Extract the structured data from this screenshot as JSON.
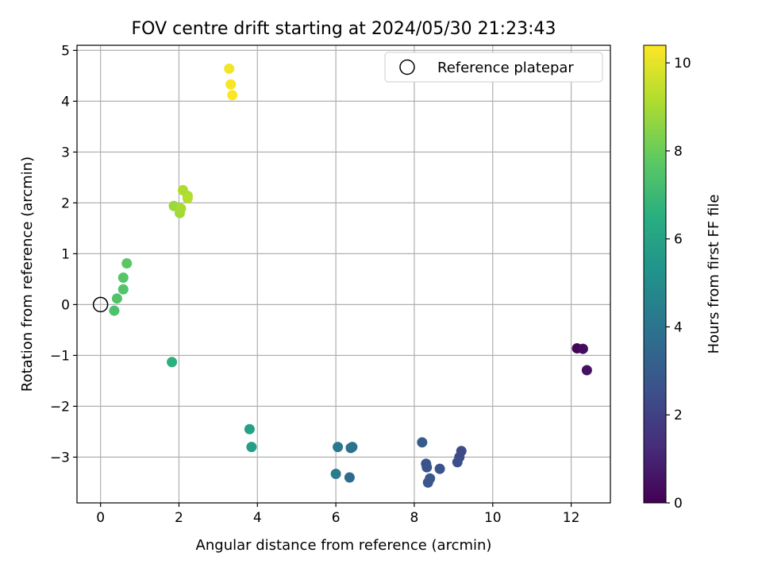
{
  "chart_data": {
    "type": "scatter",
    "title": "FOV centre drift starting at 2024/05/30 21:23:43",
    "xlabel": "Angular distance from reference (arcmin)",
    "ylabel": "Rotation from reference (arcmin)",
    "xlim": [
      -0.6,
      13.0
    ],
    "ylim": [
      -3.9,
      5.1
    ],
    "xticks": [
      0,
      2,
      4,
      6,
      8,
      10,
      12
    ],
    "yticks": [
      -3,
      -2,
      -1,
      0,
      1,
      2,
      3,
      4,
      5
    ],
    "grid": true,
    "legend": {
      "placement": "top-right",
      "entries": [
        "Reference platepar"
      ]
    },
    "reference_point": {
      "x": 0,
      "y": 0,
      "label": "Reference platepar"
    },
    "colorbar": {
      "label": "Hours from first FF file",
      "range": [
        0,
        10.4
      ],
      "ticks": [
        0,
        2,
        4,
        6,
        8,
        10
      ],
      "colormap": "viridis"
    },
    "series": [
      {
        "points": [
          {
            "x": 12.15,
            "y": -0.86,
            "c": 0.1
          },
          {
            "x": 12.3,
            "y": -0.87,
            "c": 0.3
          },
          {
            "x": 12.4,
            "y": -1.29,
            "c": 0.5
          },
          {
            "x": 9.2,
            "y": -2.88,
            "c": 2.4
          },
          {
            "x": 9.15,
            "y": -3.0,
            "c": 2.4
          },
          {
            "x": 9.1,
            "y": -3.1,
            "c": 2.5
          },
          {
            "x": 8.65,
            "y": -3.23,
            "c": 2.6
          },
          {
            "x": 8.3,
            "y": -3.13,
            "c": 2.7
          },
          {
            "x": 8.32,
            "y": -3.2,
            "c": 2.7
          },
          {
            "x": 8.4,
            "y": -3.42,
            "c": 2.8
          },
          {
            "x": 8.35,
            "y": -3.5,
            "c": 2.8
          },
          {
            "x": 8.2,
            "y": -2.71,
            "c": 3.0
          },
          {
            "x": 6.35,
            "y": -3.4,
            "c": 3.6
          },
          {
            "x": 6.38,
            "y": -2.82,
            "c": 3.9
          },
          {
            "x": 6.42,
            "y": -2.8,
            "c": 3.9
          },
          {
            "x": 6.05,
            "y": -2.8,
            "c": 4.1
          },
          {
            "x": 6.0,
            "y": -3.33,
            "c": 4.3
          },
          {
            "x": 3.85,
            "y": -2.8,
            "c": 5.8
          },
          {
            "x": 3.8,
            "y": -2.45,
            "c": 5.9
          },
          {
            "x": 1.82,
            "y": -1.13,
            "c": 6.6
          },
          {
            "x": 0.35,
            "y": -0.12,
            "c": 7.4
          },
          {
            "x": 0.42,
            "y": 0.12,
            "c": 7.5
          },
          {
            "x": 0.58,
            "y": 0.3,
            "c": 7.5
          },
          {
            "x": 0.58,
            "y": 0.53,
            "c": 7.6
          },
          {
            "x": 0.67,
            "y": 0.81,
            "c": 7.7
          },
          {
            "x": 1.87,
            "y": 1.94,
            "c": 8.8
          },
          {
            "x": 2.02,
            "y": 1.8,
            "c": 8.9
          },
          {
            "x": 2.05,
            "y": 1.89,
            "c": 9.0
          },
          {
            "x": 2.1,
            "y": 2.25,
            "c": 9.1
          },
          {
            "x": 2.22,
            "y": 2.14,
            "c": 9.1
          },
          {
            "x": 2.22,
            "y": 2.09,
            "c": 9.2
          },
          {
            "x": 3.28,
            "y": 4.64,
            "c": 10.2
          },
          {
            "x": 3.32,
            "y": 4.33,
            "c": 10.3
          },
          {
            "x": 3.36,
            "y": 4.12,
            "c": 10.4
          }
        ]
      }
    ]
  }
}
